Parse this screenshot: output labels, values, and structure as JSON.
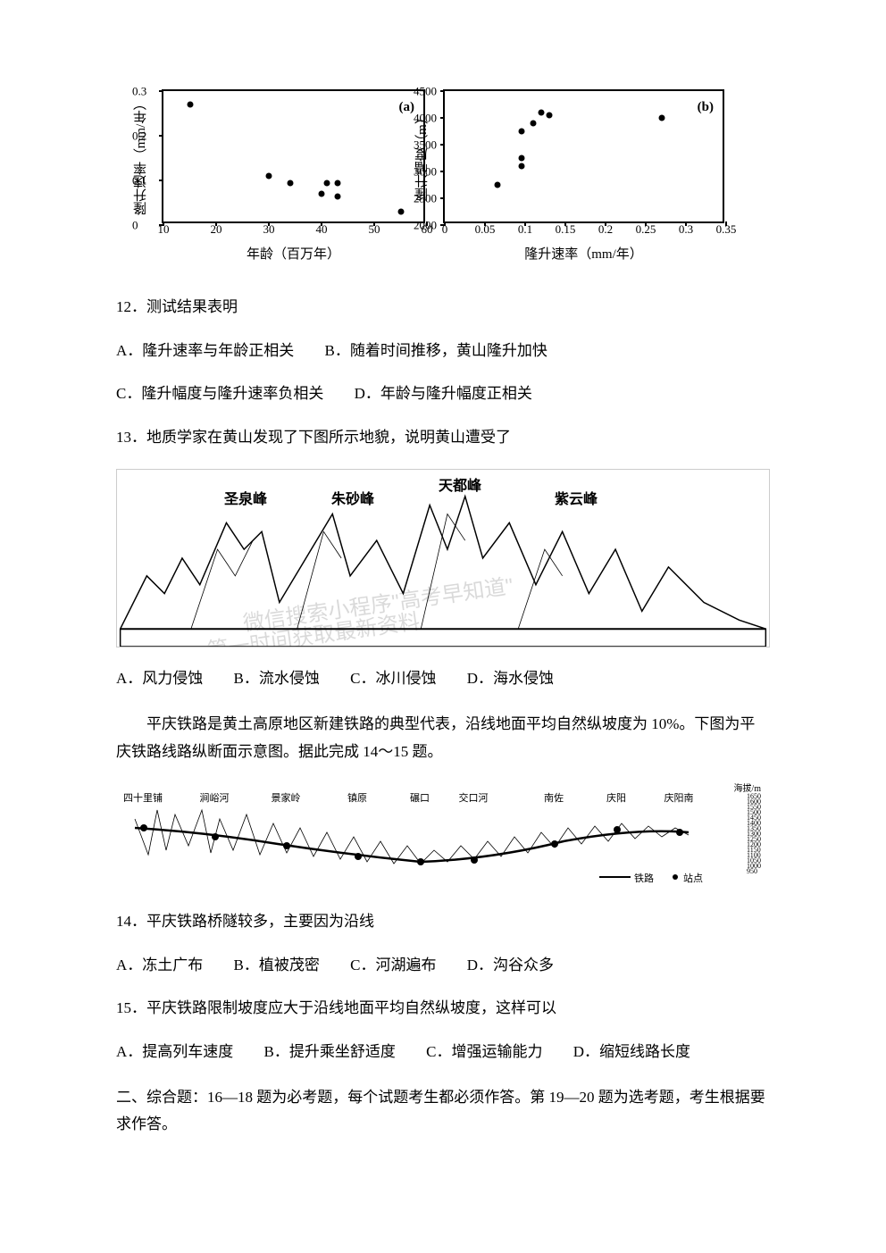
{
  "chart_a": {
    "type": "scatter",
    "label": "(a)",
    "y_axis_label": "隆升速率（mm/年）",
    "x_axis_label": "年龄（百万年）",
    "xlim": [
      10,
      60
    ],
    "ylim": [
      0,
      0.3
    ],
    "x_ticks": [
      10,
      20,
      30,
      40,
      50,
      60
    ],
    "y_ticks": [
      0,
      0.1,
      0.2,
      0.3
    ],
    "y_tick_labels": [
      "0",
      "0.1",
      "0.2",
      "0.3"
    ],
    "points": [
      {
        "x": 15,
        "y": 0.27
      },
      {
        "x": 30,
        "y": 0.11
      },
      {
        "x": 34,
        "y": 0.095
      },
      {
        "x": 40,
        "y": 0.07
      },
      {
        "x": 41,
        "y": 0.095
      },
      {
        "x": 43,
        "y": 0.095
      },
      {
        "x": 43,
        "y": 0.065
      },
      {
        "x": 55,
        "y": 0.03
      }
    ],
    "border_color": "#000000",
    "point_color": "#000000",
    "background_color": "#ffffff"
  },
  "chart_b": {
    "type": "scatter",
    "label": "(b)",
    "y_axis_label": "隆升幅度（m）",
    "x_axis_label": "隆升速率（mm/年）",
    "xlim": [
      0,
      0.35
    ],
    "ylim": [
      2000,
      4500
    ],
    "x_ticks": [
      0,
      0.05,
      0.1,
      0.15,
      0.2,
      0.25,
      0.3,
      0.35
    ],
    "x_tick_labels": [
      "0",
      "0.05",
      "0.1",
      "0.15",
      "0.2",
      "0.25",
      "0.3",
      "0.35"
    ],
    "y_ticks": [
      2000,
      2500,
      3000,
      3500,
      4000,
      4500
    ],
    "points": [
      {
        "x": 0.065,
        "y": 2750
      },
      {
        "x": 0.095,
        "y": 3100
      },
      {
        "x": 0.095,
        "y": 3250
      },
      {
        "x": 0.095,
        "y": 3750
      },
      {
        "x": 0.11,
        "y": 3900
      },
      {
        "x": 0.12,
        "y": 4100
      },
      {
        "x": 0.13,
        "y": 4050
      },
      {
        "x": 0.27,
        "y": 4000
      }
    ],
    "border_color": "#000000",
    "point_color": "#000000",
    "background_color": "#ffffff"
  },
  "q12": {
    "text": "12．测试结果表明",
    "option_a": "A．隆升速率与年龄正相关",
    "option_b": "B．随着时间推移，黄山隆升加快",
    "option_c": "C．隆升幅度与隆升速率负相关",
    "option_d": "D．年龄与隆升幅度正相关"
  },
  "q13": {
    "text": "13．地质学家在黄山发现了下图所示地貌，说明黄山遭受了",
    "option_a": "A．风力侵蚀",
    "option_b": "B．流水侵蚀",
    "option_c": "C．冰川侵蚀",
    "option_d": "D．海水侵蚀"
  },
  "mountain": {
    "peaks": [
      "圣泉峰",
      "朱砂峰",
      "天都峰",
      "紫云峰"
    ],
    "watermark_line1": "微信搜索小程序\"高考早知道\"",
    "watermark_line2": "第一时间获取最新资料"
  },
  "passage": {
    "text": "平庆铁路是黄土高原地区新建铁路的典型代表，沿线地面平均自然纵坡度为 10%。下图为平庆铁路线路纵断面示意图。据此完成 14～15 题。"
  },
  "profile": {
    "stations": [
      "四十里铺",
      "涧峪河",
      "景家岭",
      "镇原",
      "碾口",
      "交口河",
      "南佐",
      "庆阳",
      "庆阳南"
    ],
    "elevation_title": "海拔/m",
    "elevations": [
      "1650",
      "1600",
      "1550",
      "1500",
      "1450",
      "1400",
      "1350",
      "1300",
      "1250",
      "1200",
      "1150",
      "1100",
      "1050",
      "1000",
      "950"
    ],
    "legend_line": "铁路",
    "legend_point": "站点"
  },
  "q14": {
    "text": "14．平庆铁路桥隧较多，主要因为沿线",
    "option_a": "A．冻土广布",
    "option_b": "B．植被茂密",
    "option_c": "C．河湖遍布",
    "option_d": "D．沟谷众多"
  },
  "q15": {
    "text": "15．平庆铁路限制坡度应大于沿线地面平均自然纵坡度，这样可以",
    "option_a": "A．提高列车速度",
    "option_b": "B．提升乘坐舒适度",
    "option_c": "C．增强运输能力",
    "option_d": "D．缩短线路长度"
  },
  "section2": {
    "text": "二、综合题：16—18 题为必考题，每个试题考生都必须作答。第 19—20 题为选考题，考生根据要求作答。"
  }
}
